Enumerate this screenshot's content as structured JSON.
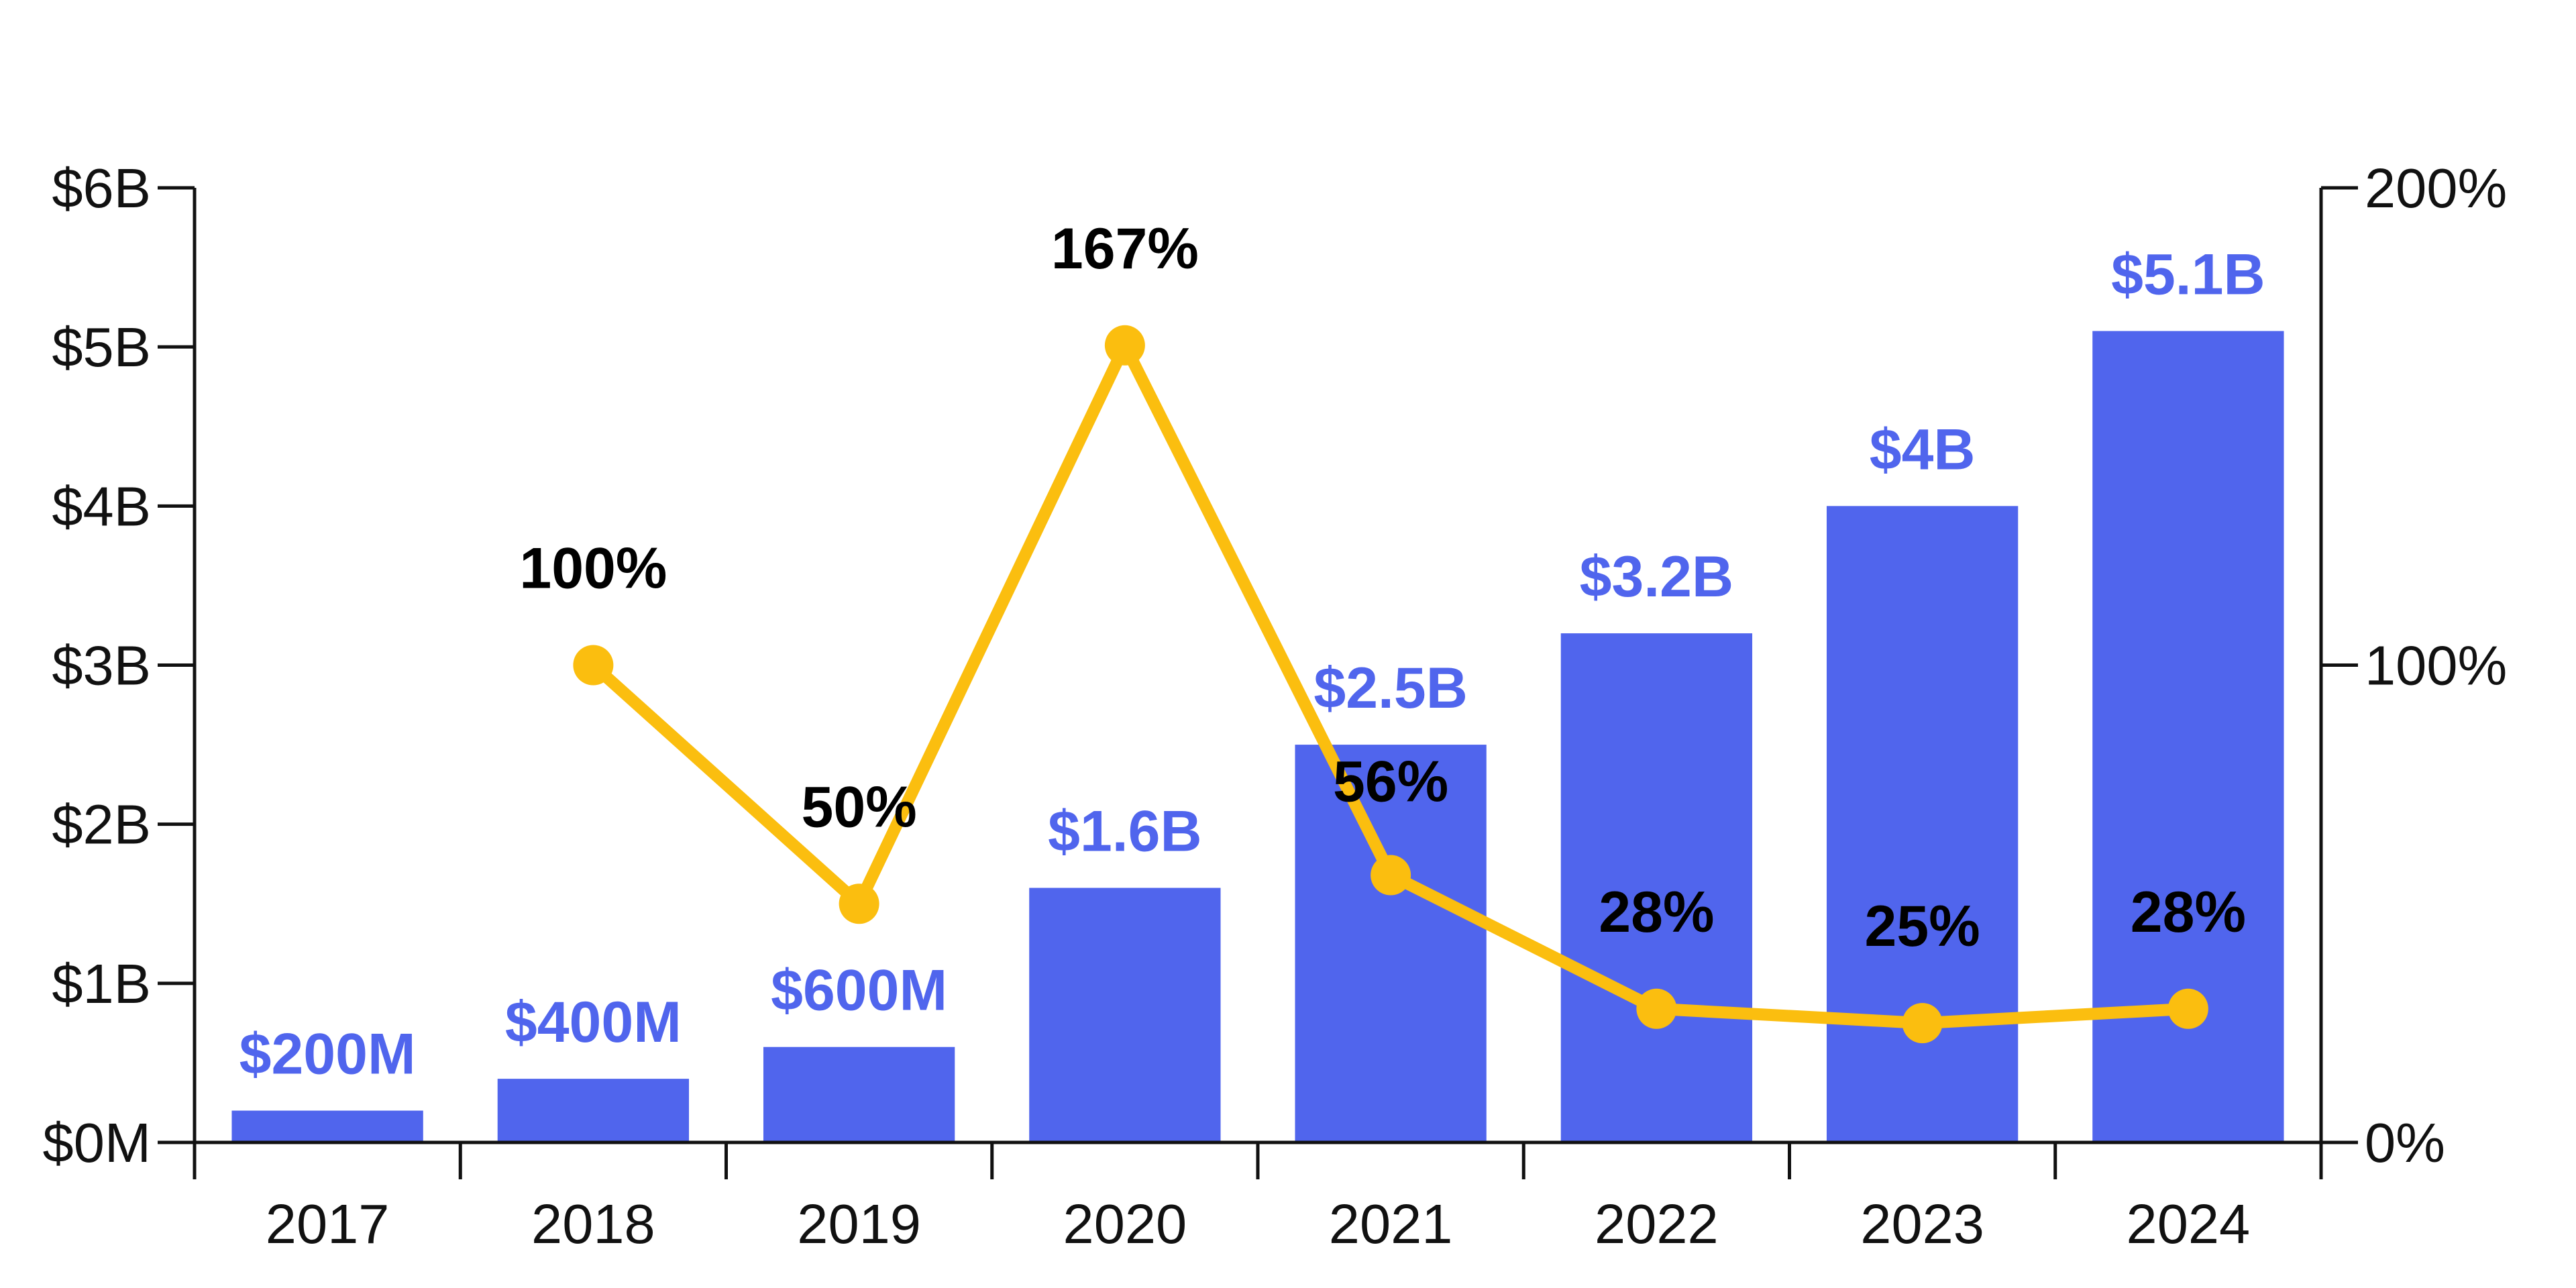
{
  "colors": {
    "bar": "#5065ED",
    "bar_label": "#5065ED",
    "line": "#FBBE0F",
    "axis": "#111111",
    "pct_label": "#000000"
  },
  "chart_data": {
    "type": "bar",
    "categories": [
      "2017",
      "2018",
      "2019",
      "2020",
      "2021",
      "2022",
      "2023",
      "2024"
    ],
    "series": [
      {
        "type": "bar",
        "axis": "left",
        "values": [
          0.2,
          0.4,
          0.6,
          1.6,
          2.5,
          3.2,
          4.0,
          5.1
        ],
        "labels": [
          "$200M",
          "$400M",
          "$600M",
          "$1.6B",
          "$2.5B",
          "$3.2B",
          "$4B",
          "$5.1B"
        ]
      },
      {
        "type": "line",
        "axis": "right",
        "values": [
          null,
          100,
          50,
          167,
          56,
          28,
          25,
          28
        ],
        "labels": [
          "",
          "100%",
          "50%",
          "167%",
          "56%",
          "28%",
          "25%",
          "28%"
        ]
      }
    ],
    "y_left": {
      "ylim": [
        0,
        6
      ],
      "unit": "billion USD",
      "ticks": [
        0,
        1,
        2,
        3,
        4,
        5,
        6
      ],
      "tick_labels": [
        "$0M",
        "$1B",
        "$2B",
        "$3B",
        "$4B",
        "$5B",
        "$6B"
      ]
    },
    "y_right": {
      "ylim": [
        0,
        200
      ],
      "unit": "percent",
      "ticks": [
        0,
        100,
        200
      ],
      "tick_labels": [
        "0%",
        "100%",
        "200%"
      ]
    },
    "grid": false,
    "legend": "none",
    "title": "",
    "xlabel": "",
    "ylabel": ""
  }
}
